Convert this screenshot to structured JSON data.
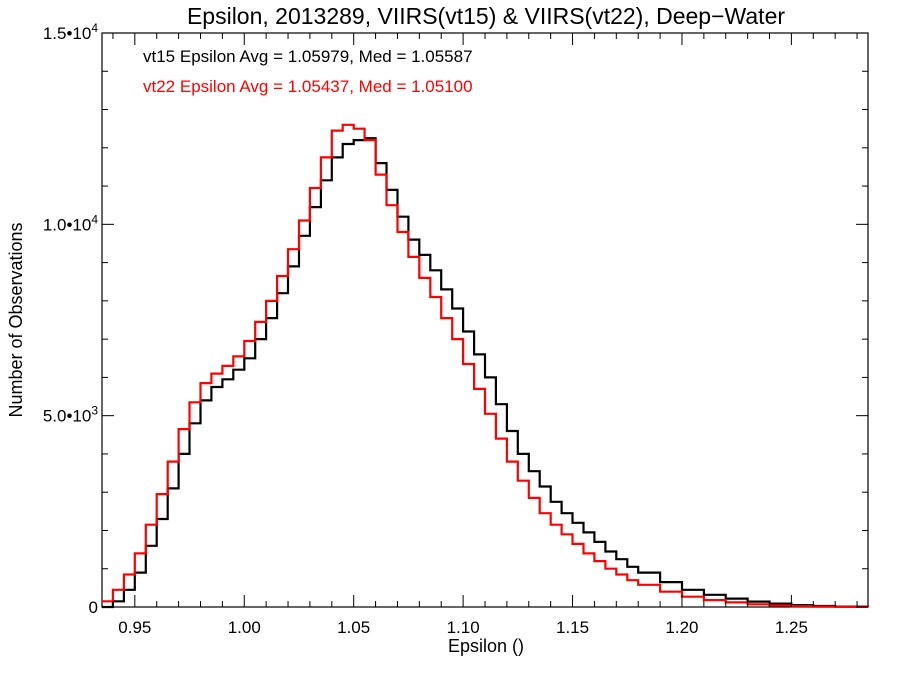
{
  "chart_data": {
    "type": "line",
    "title": "Epsilon, 2013289, VIIRS(vt15) & VIIRS(vt22), Deep−Water",
    "xlabel": "Epsilon ()",
    "ylabel": "Number of Observations",
    "xlim": [
      0.935,
      1.285
    ],
    "ylim": [
      0,
      15000
    ],
    "x_ticks": [
      0.95,
      1.0,
      1.05,
      1.1,
      1.15,
      1.2,
      1.25
    ],
    "x_tick_labels": [
      "0.95",
      "1.00",
      "1.05",
      "1.10",
      "1.15",
      "1.20",
      "1.25"
    ],
    "y_ticks": [
      {
        "value": 0,
        "mantissa": "0",
        "exp": ""
      },
      {
        "value": 5000,
        "mantissa": "5.0•10",
        "exp": "3"
      },
      {
        "value": 10000,
        "mantissa": "1.0•10",
        "exp": "4"
      },
      {
        "value": 15000,
        "mantissa": "1.5•10",
        "exp": "4"
      }
    ],
    "grid": false,
    "step": true,
    "annotations": [
      {
        "text": "vt15 Epsilon Avg = 1.05979, Med = 1.05587",
        "color": "#000000"
      },
      {
        "text": "vt22 Epsilon Avg = 1.05437, Med = 1.05100",
        "color": "#ff0000"
      }
    ],
    "series": [
      {
        "color": "#000000",
        "x": [
          0.935,
          0.94,
          0.945,
          0.95,
          0.955,
          0.96,
          0.965,
          0.97,
          0.975,
          0.98,
          0.985,
          0.99,
          0.995,
          1.0,
          1.005,
          1.01,
          1.015,
          1.02,
          1.025,
          1.03,
          1.035,
          1.04,
          1.045,
          1.05,
          1.055,
          1.06,
          1.065,
          1.07,
          1.075,
          1.08,
          1.085,
          1.09,
          1.095,
          1.1,
          1.105,
          1.11,
          1.115,
          1.12,
          1.125,
          1.13,
          1.135,
          1.14,
          1.145,
          1.15,
          1.155,
          1.16,
          1.165,
          1.17,
          1.175,
          1.18,
          1.19,
          1.2,
          1.21,
          1.22,
          1.23,
          1.24,
          1.25,
          1.26,
          1.27,
          1.285
        ],
        "y": [
          0,
          150,
          450,
          900,
          1600,
          2300,
          3100,
          4000,
          4800,
          5400,
          5750,
          5950,
          6200,
          6500,
          7000,
          7550,
          8200,
          8900,
          9700,
          10450,
          11150,
          11750,
          12100,
          12200,
          12250,
          11600,
          10900,
          10200,
          9600,
          9200,
          8800,
          8300,
          7800,
          7200,
          6600,
          6000,
          5300,
          4600,
          4000,
          3550,
          3150,
          2750,
          2450,
          2200,
          1950,
          1700,
          1450,
          1250,
          1050,
          900,
          650,
          450,
          320,
          220,
          140,
          90,
          50,
          25,
          10,
          0
        ]
      },
      {
        "color": "#ff0000",
        "x": [
          0.935,
          0.94,
          0.945,
          0.95,
          0.955,
          0.96,
          0.965,
          0.97,
          0.975,
          0.98,
          0.985,
          0.99,
          0.995,
          1.0,
          1.005,
          1.01,
          1.015,
          1.02,
          1.025,
          1.03,
          1.035,
          1.04,
          1.045,
          1.05,
          1.055,
          1.06,
          1.065,
          1.07,
          1.075,
          1.08,
          1.085,
          1.09,
          1.095,
          1.1,
          1.105,
          1.11,
          1.115,
          1.12,
          1.125,
          1.13,
          1.135,
          1.14,
          1.145,
          1.15,
          1.155,
          1.16,
          1.165,
          1.17,
          1.175,
          1.18,
          1.19,
          1.2,
          1.21,
          1.22,
          1.23,
          1.24,
          1.25,
          1.26,
          1.27,
          1.285
        ],
        "y": [
          150,
          450,
          850,
          1400,
          2150,
          2950,
          3800,
          4650,
          5350,
          5850,
          6100,
          6300,
          6550,
          6950,
          7450,
          8000,
          8650,
          9350,
          10100,
          10950,
          11750,
          12450,
          12600,
          12500,
          12200,
          11300,
          10500,
          9800,
          9150,
          8600,
          8100,
          7550,
          7000,
          6350,
          5700,
          5050,
          4400,
          3800,
          3300,
          2850,
          2450,
          2150,
          1900,
          1650,
          1400,
          1200,
          1000,
          850,
          700,
          580,
          400,
          270,
          180,
          120,
          70,
          40,
          20,
          10,
          5,
          0
        ]
      }
    ]
  }
}
